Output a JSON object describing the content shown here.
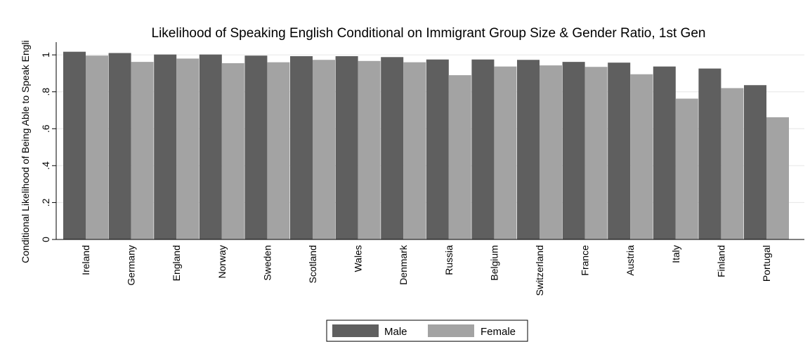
{
  "chart_data": {
    "type": "bar",
    "title": "Likelihood of Speaking English Conditional on Immigrant Group Size & Gender Ratio, 1st Gen",
    "xlabel": "",
    "ylabel": "Conditional Likelihood of Being Able to Speak Engli",
    "ylim": [
      0,
      1.05
    ],
    "yticks": [
      0,
      0.2,
      0.4,
      0.6,
      0.8,
      1
    ],
    "ytick_labels": [
      "0",
      ".2",
      ".4",
      ".6",
      ".8",
      "1"
    ],
    "grid": true,
    "legend_position": "bottom",
    "categories": [
      "Ireland",
      "Germany",
      "England",
      "Norway",
      "Sweden",
      "Scotland",
      "Wales",
      "Denmark",
      "Russia",
      "Belgium",
      "Switzerland",
      "France",
      "Austria",
      "Italy",
      "Finland",
      "Portugal"
    ],
    "series": [
      {
        "name": "Male",
        "color": "#5f5f5f",
        "values": [
          1.017,
          1.01,
          1.002,
          1.002,
          0.996,
          0.993,
          0.993,
          0.988,
          0.975,
          0.975,
          0.973,
          0.962,
          0.958,
          0.937,
          0.926,
          0.836
        ]
      },
      {
        "name": "Female",
        "color": "#a3a3a3",
        "values": [
          0.996,
          0.962,
          0.98,
          0.955,
          0.96,
          0.973,
          0.967,
          0.96,
          0.89,
          0.937,
          0.943,
          0.935,
          0.895,
          0.763,
          0.82,
          0.662
        ]
      }
    ]
  }
}
